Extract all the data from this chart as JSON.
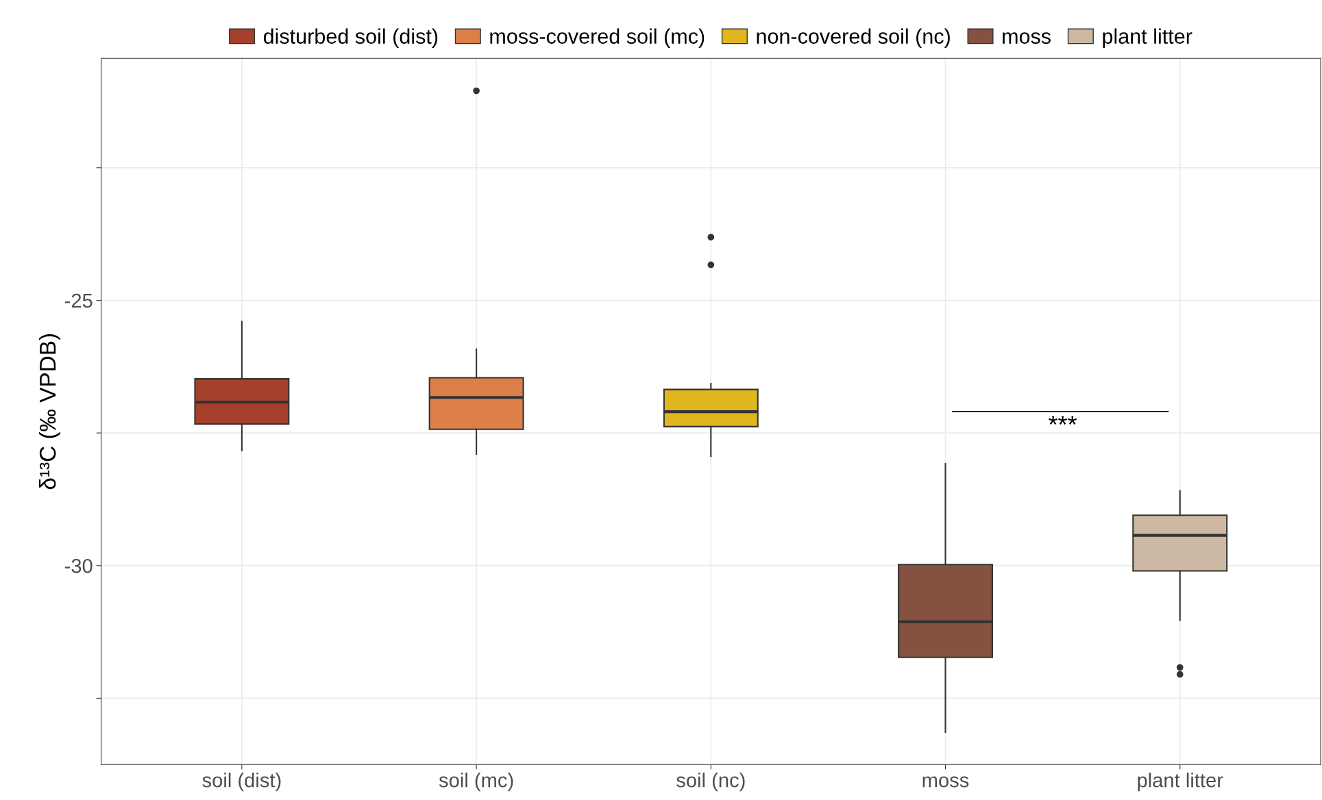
{
  "chart_data": {
    "type": "box",
    "ylabel": "δ¹³C (‰ VPDB)",
    "categories": [
      "soil (dist)",
      "soil (mc)",
      "soil (nc)",
      "moss",
      "plant litter"
    ],
    "series": [
      {
        "name": "disturbed soil (dist)",
        "color": "#a5402c",
        "boxes": [
          {
            "low": -27.83,
            "q1": -27.33,
            "median": -26.92,
            "q3": -26.48,
            "high": -25.4
          },
          null,
          null,
          null,
          null
        ]
      },
      {
        "name": "moss-covered soil (mc)",
        "color": "#dc7f48",
        "boxes": [
          null,
          {
            "low": -27.9,
            "q1": -27.43,
            "median": -26.83,
            "q3": -26.46,
            "high": -25.92,
            "outliers": [
              -21.05
            ]
          },
          null,
          null,
          null
        ]
      },
      {
        "name": "non-covered soil (nc)",
        "color": "#e0b61c",
        "boxes": [
          null,
          null,
          {
            "low": -27.94,
            "q1": -27.38,
            "median": -27.1,
            "q3": -26.68,
            "high": -26.57,
            "outliers": [
              -23.81,
              -24.33
            ]
          },
          null,
          null
        ]
      },
      {
        "name": "moss",
        "color": "#855242",
        "boxes": [
          null,
          null,
          null,
          {
            "low": -33.14,
            "q1": -31.73,
            "median": -31.06,
            "q3": -29.98,
            "high": -28.08
          },
          null
        ]
      },
      {
        "name": "plant litter",
        "color": "#ccb8a3",
        "boxes": [
          null,
          null,
          null,
          null,
          {
            "low": -31.03,
            "q1": -30.1,
            "median": -29.43,
            "q3": -29.05,
            "high": -28.59,
            "outliers": [
              -31.92,
              -32.05
            ]
          }
        ]
      }
    ],
    "ylim": [
      -33.75,
      -20.44
    ],
    "yticks": [
      {
        "value": -32.5,
        "label": null
      },
      {
        "value": -30,
        "label": "-30"
      },
      {
        "value": -27.5,
        "label": null
      },
      {
        "value": -25,
        "label": "-25"
      },
      {
        "value": -22.5,
        "label": null
      }
    ],
    "annotations": [
      "***"
    ],
    "grid": true,
    "legend": "top"
  }
}
